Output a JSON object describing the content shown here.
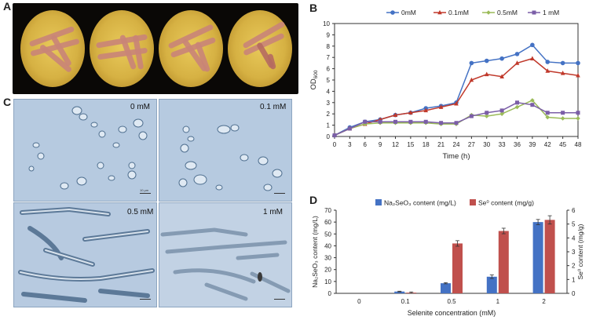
{
  "panels": {
    "a": "A",
    "b": "B",
    "c": "C",
    "d": "D"
  },
  "panel_c": {
    "labels": [
      "0 mM",
      "0.1 mM",
      "0.5 mM",
      "1 mM"
    ],
    "scale_text": "10 µm"
  },
  "chart_data": [
    {
      "type": "line",
      "panel": "B",
      "xlabel": "Time (h)",
      "ylabel": "OD600",
      "ylabel_main": "OD",
      "ylabel_sub": "600",
      "x": [
        0,
        3,
        6,
        9,
        12,
        15,
        18,
        21,
        24,
        27,
        30,
        33,
        36,
        39,
        42,
        45,
        48
      ],
      "xlim": [
        0,
        48
      ],
      "ylim": [
        0,
        10
      ],
      "xticks": [
        "0",
        "3",
        "6",
        "9",
        "12",
        "15",
        "18",
        "21",
        "24",
        "27",
        "30",
        "33",
        "36",
        "39",
        "42",
        "45",
        "48"
      ],
      "yticks": [
        "0",
        "1",
        "2",
        "3",
        "4",
        "5",
        "6",
        "7",
        "8",
        "9",
        "10"
      ],
      "legend_position": "top",
      "series": [
        {
          "name": "0mM",
          "color": "#4472c4",
          "marker": "circle",
          "values": [
            0.1,
            0.8,
            1.3,
            1.5,
            1.9,
            2.1,
            2.5,
            2.7,
            3.0,
            6.5,
            6.7,
            6.9,
            7.3,
            8.1,
            6.6,
            6.5,
            6.5
          ]
        },
        {
          "name": "0.1mM",
          "color": "#c0392b",
          "marker": "triangle",
          "values": [
            0.1,
            0.7,
            1.1,
            1.5,
            1.9,
            2.1,
            2.3,
            2.6,
            2.9,
            5.0,
            5.5,
            5.3,
            6.5,
            6.9,
            5.8,
            5.6,
            5.4
          ]
        },
        {
          "name": "0.5mM",
          "color": "#9bbb59",
          "marker": "diamond",
          "values": [
            0.1,
            0.7,
            1.1,
            1.2,
            1.2,
            1.2,
            1.2,
            1.1,
            1.1,
            1.9,
            1.8,
            2.0,
            2.6,
            3.2,
            1.7,
            1.6,
            1.6
          ]
        },
        {
          "name": "1 mM",
          "color": "#7b5ea7",
          "marker": "square",
          "values": [
            0.1,
            0.7,
            1.3,
            1.3,
            1.3,
            1.3,
            1.3,
            1.2,
            1.2,
            1.8,
            2.1,
            2.3,
            3.0,
            2.8,
            2.1,
            2.1,
            2.1
          ]
        }
      ]
    },
    {
      "type": "bar",
      "panel": "D",
      "categories": [
        "0",
        "0.1",
        "0.5",
        "1",
        "2"
      ],
      "xlabel": "Selenite concentration (mM)",
      "ylabel_left": "Na₂SeO₃ content (mg/L)",
      "ylabel_right": "Se⁰ content (mg/g)",
      "ylim_left": [
        0,
        70
      ],
      "ylim_right": [
        0,
        6
      ],
      "yticks_left": [
        "0",
        "10",
        "20",
        "30",
        "40",
        "50",
        "60",
        "70"
      ],
      "yticks_right": [
        "0",
        "1",
        "2",
        "3",
        "4",
        "5",
        "6"
      ],
      "legend_position": "top",
      "series": [
        {
          "name": "Na₂SeO₃ content (mg/L)",
          "axis": "left",
          "color": "#4472c4",
          "values": [
            0,
            1.5,
            8.5,
            14,
            60
          ],
          "errors": [
            0,
            0.3,
            0.5,
            1.5,
            2.2
          ]
        },
        {
          "name": "Se⁰ content (mg/g)",
          "axis": "right",
          "color": "#c0504d",
          "values": [
            0,
            0.05,
            3.6,
            4.5,
            5.3
          ],
          "errors": [
            0,
            0.05,
            0.2,
            0.2,
            0.3
          ]
        }
      ]
    }
  ]
}
